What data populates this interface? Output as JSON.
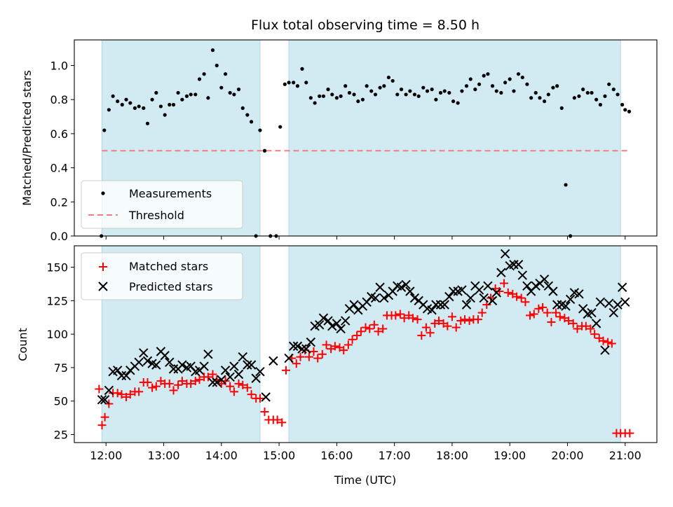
{
  "chart_data": [
    {
      "type": "scatter",
      "title": "Flux total observing time = 8.50 h",
      "xlabel": "",
      "ylabel": "Matched/Predicted stars",
      "xlim": [
        11.45,
        21.55
      ],
      "ylim": [
        0.0,
        1.15
      ],
      "yticks": [
        0.0,
        0.2,
        0.4,
        0.6,
        0.8,
        1.0
      ],
      "ytick_labels": [
        "0.0",
        "0.2",
        "0.4",
        "0.6",
        "0.8",
        "1.0"
      ],
      "shaded_ranges": [
        [
          11.93,
          14.67
        ],
        [
          15.17,
          20.92
        ]
      ],
      "shade_color": "#add8e6",
      "legend": {
        "placement": "lower-left",
        "entries": [
          "Measurements",
          "Threshold"
        ]
      },
      "series": [
        {
          "name": "Measurements",
          "marker": "dot",
          "color": "#000000",
          "x": [
            11.92,
            11.97,
            12.05,
            12.12,
            12.2,
            12.28,
            12.35,
            12.42,
            12.5,
            12.57,
            12.65,
            12.72,
            12.8,
            12.87,
            12.95,
            13.02,
            13.1,
            13.17,
            13.25,
            13.32,
            13.4,
            13.47,
            13.55,
            13.62,
            13.7,
            13.77,
            13.85,
            13.92,
            14.0,
            14.07,
            14.15,
            14.22,
            14.3,
            14.37,
            14.45,
            14.52,
            14.6,
            14.67,
            14.75,
            14.85,
            14.95,
            15.02,
            15.1,
            15.17,
            15.25,
            15.32,
            15.4,
            15.47,
            15.55,
            15.62,
            15.7,
            15.77,
            15.85,
            15.92,
            16.0,
            16.07,
            16.15,
            16.22,
            16.3,
            16.37,
            16.45,
            16.52,
            16.6,
            16.67,
            16.75,
            16.82,
            16.9,
            16.97,
            17.05,
            17.12,
            17.2,
            17.27,
            17.35,
            17.42,
            17.5,
            17.57,
            17.65,
            17.72,
            17.8,
            17.87,
            17.95,
            18.02,
            18.1,
            18.17,
            18.25,
            18.32,
            18.4,
            18.47,
            18.55,
            18.62,
            18.7,
            18.77,
            18.85,
            18.92,
            19.0,
            19.07,
            19.15,
            19.22,
            19.3,
            19.37,
            19.45,
            19.52,
            19.6,
            19.67,
            19.75,
            19.82,
            19.9,
            19.97,
            20.05,
            20.12,
            20.2,
            20.27,
            20.35,
            20.42,
            20.5,
            20.57,
            20.65,
            20.72,
            20.8,
            20.87,
            20.95,
            21.0,
            21.07
          ],
          "y": [
            0.0,
            0.62,
            0.74,
            0.82,
            0.79,
            0.77,
            0.8,
            0.78,
            0.75,
            0.76,
            0.75,
            0.66,
            0.8,
            0.84,
            0.76,
            0.71,
            0.77,
            0.77,
            0.84,
            0.8,
            0.82,
            0.83,
            0.83,
            0.92,
            0.95,
            0.81,
            1.09,
            1.0,
            0.87,
            0.95,
            0.84,
            0.83,
            0.86,
            0.75,
            0.71,
            0.67,
            0.0,
            0.62,
            0.5,
            0.0,
            0.0,
            0.64,
            0.89,
            0.9,
            0.9,
            0.88,
            0.98,
            0.9,
            0.81,
            0.78,
            0.82,
            0.82,
            0.86,
            0.83,
            0.81,
            0.82,
            0.88,
            0.84,
            0.83,
            0.79,
            0.8,
            0.88,
            0.85,
            0.83,
            0.87,
            0.88,
            0.93,
            0.91,
            0.83,
            0.86,
            0.83,
            0.85,
            0.83,
            0.82,
            0.87,
            0.85,
            0.86,
            0.8,
            0.84,
            0.85,
            0.84,
            0.79,
            0.78,
            0.85,
            0.88,
            0.92,
            0.86,
            0.89,
            0.94,
            0.95,
            0.88,
            0.85,
            0.84,
            0.9,
            0.92,
            0.85,
            0.95,
            0.93,
            0.89,
            0.81,
            0.84,
            0.81,
            0.79,
            0.83,
            0.87,
            0.88,
            0.75,
            0.3,
            0.0,
            0.81,
            0.82,
            0.86,
            0.84,
            0.84,
            0.8,
            0.77,
            0.82,
            0.89,
            0.86,
            0.83,
            0.77,
            0.74,
            0.73
          ]
        },
        {
          "name": "Threshold",
          "type": "line",
          "style": "dashed",
          "color": "#f08080",
          "x": [
            11.93,
            21.08
          ],
          "y": [
            0.5,
            0.5
          ]
        }
      ]
    },
    {
      "type": "scatter",
      "title": "",
      "xlabel": "Time (UTC)",
      "ylabel": "Count",
      "xlim": [
        11.45,
        21.55
      ],
      "ylim": [
        19,
        166
      ],
      "xticks": [
        12,
        13,
        14,
        15,
        16,
        17,
        18,
        19,
        20,
        21
      ],
      "xtick_labels": [
        "12:00",
        "13:00",
        "14:00",
        "15:00",
        "16:00",
        "17:00",
        "18:00",
        "19:00",
        "20:00",
        "21:00"
      ],
      "yticks": [
        25,
        50,
        75,
        100,
        125,
        150
      ],
      "ytick_labels": [
        "25",
        "50",
        "75",
        "100",
        "125",
        "150"
      ],
      "shaded_ranges": [
        [
          11.93,
          14.67
        ],
        [
          15.17,
          20.92
        ]
      ],
      "shade_color": "#add8e6",
      "legend": {
        "placement": "upper-left",
        "entries": [
          "Matched stars",
          "Predicted stars"
        ]
      },
      "series": [
        {
          "name": "Matched stars",
          "marker": "plus",
          "color": "#ff0000",
          "x": [
            11.88,
            11.93,
            11.98,
            12.05,
            12.12,
            12.2,
            12.27,
            12.35,
            12.42,
            12.5,
            12.57,
            12.65,
            12.72,
            12.8,
            12.87,
            12.95,
            13.02,
            13.1,
            13.17,
            13.25,
            13.32,
            13.4,
            13.47,
            13.55,
            13.62,
            13.7,
            13.77,
            13.85,
            13.92,
            14.0,
            14.07,
            14.15,
            14.22,
            14.3,
            14.37,
            14.45,
            14.52,
            14.6,
            14.67,
            14.75,
            14.82,
            14.9,
            14.97,
            15.05,
            15.12,
            15.22,
            15.3,
            15.37,
            15.45,
            15.52,
            15.6,
            15.67,
            15.75,
            15.82,
            15.9,
            15.97,
            16.05,
            16.12,
            16.2,
            16.27,
            16.35,
            16.42,
            16.5,
            16.57,
            16.65,
            16.72,
            16.8,
            16.87,
            16.95,
            17.02,
            17.1,
            17.17,
            17.25,
            17.32,
            17.4,
            17.47,
            17.55,
            17.62,
            17.7,
            17.77,
            17.85,
            17.92,
            18.0,
            18.07,
            18.15,
            18.22,
            18.3,
            18.37,
            18.45,
            18.52,
            18.6,
            18.67,
            18.75,
            18.82,
            18.9,
            18.97,
            19.05,
            19.12,
            19.2,
            19.27,
            19.35,
            19.42,
            19.5,
            19.57,
            19.65,
            19.72,
            19.8,
            19.87,
            19.95,
            20.02,
            20.1,
            20.17,
            20.25,
            20.32,
            20.4,
            20.47,
            20.55,
            20.62,
            20.7,
            20.77,
            20.85,
            20.92,
            21.0,
            21.08
          ],
          "y": [
            59,
            32,
            38,
            48,
            56,
            56,
            55,
            53,
            55,
            57,
            57,
            64,
            64,
            60,
            61,
            65,
            63,
            63,
            58,
            62,
            65,
            63,
            63,
            65,
            66,
            68,
            68,
            70,
            66,
            63,
            65,
            61,
            57,
            63,
            62,
            60,
            55,
            52,
            52,
            42,
            36,
            36,
            36,
            34,
            73,
            82,
            78,
            83,
            88,
            83,
            87,
            82,
            85,
            92,
            89,
            91,
            90,
            88,
            92,
            96,
            99,
            102,
            105,
            104,
            107,
            102,
            104,
            114,
            114,
            114,
            115,
            112,
            114,
            112,
            111,
            99,
            105,
            101,
            108,
            110,
            108,
            106,
            113,
            105,
            110,
            111,
            110,
            111,
            111,
            116,
            122,
            127,
            134,
            132,
            138,
            131,
            130,
            128,
            127,
            124,
            114,
            115,
            119,
            120,
            116,
            109,
            116,
            113,
            112,
            110,
            108,
            104,
            106,
            106,
            104,
            100,
            97,
            95,
            94,
            93,
            26,
            26,
            26,
            26
          ]
        },
        {
          "name": "Predicted stars",
          "marker": "x",
          "color": "#000000",
          "x": [
            11.93,
            11.98,
            12.05,
            12.12,
            12.2,
            12.27,
            12.35,
            12.42,
            12.5,
            12.57,
            12.65,
            12.72,
            12.8,
            12.87,
            12.95,
            13.02,
            13.1,
            13.17,
            13.25,
            13.32,
            13.4,
            13.47,
            13.55,
            13.62,
            13.7,
            13.77,
            13.85,
            13.92,
            14.0,
            14.07,
            14.15,
            14.22,
            14.3,
            14.37,
            14.45,
            14.52,
            14.6,
            14.67,
            14.77,
            14.9,
            15.17,
            15.25,
            15.32,
            15.4,
            15.47,
            15.55,
            15.62,
            15.7,
            15.77,
            15.85,
            15.92,
            16.0,
            16.07,
            16.15,
            16.22,
            16.3,
            16.37,
            16.45,
            16.52,
            16.6,
            16.67,
            16.75,
            16.82,
            16.9,
            16.97,
            17.05,
            17.12,
            17.2,
            17.27,
            17.35,
            17.42,
            17.5,
            17.57,
            17.65,
            17.72,
            17.8,
            17.87,
            17.95,
            18.02,
            18.1,
            18.17,
            18.25,
            18.32,
            18.4,
            18.47,
            18.55,
            18.62,
            18.7,
            18.77,
            18.85,
            18.92,
            19.0,
            19.07,
            19.15,
            19.22,
            19.3,
            19.37,
            19.45,
            19.52,
            19.6,
            19.67,
            19.75,
            19.82,
            19.9,
            19.97,
            20.05,
            20.12,
            20.2,
            20.27,
            20.35,
            20.42,
            20.5,
            20.57,
            20.65,
            20.72,
            20.8,
            20.87,
            20.95,
            21.0
          ],
          "y": [
            51,
            51,
            58,
            72,
            73,
            69,
            69,
            73,
            76,
            79,
            86,
            80,
            78,
            77,
            87,
            84,
            79,
            74,
            74,
            77,
            75,
            76,
            72,
            73,
            76,
            85,
            64,
            64,
            66,
            73,
            68,
            76,
            70,
            83,
            77,
            77,
            67,
            72,
            53,
            80,
            82,
            91,
            91,
            89,
            89,
            94,
            106,
            107,
            112,
            110,
            106,
            108,
            104,
            110,
            119,
            122,
            118,
            121,
            124,
            128,
            127,
            135,
            127,
            129,
            132,
            136,
            135,
            137,
            132,
            127,
            125,
            122,
            119,
            118,
            122,
            122,
            122,
            128,
            132,
            132,
            133,
            122,
            127,
            136,
            133,
            127,
            136,
            125,
            131,
            146,
            160,
            151,
            152,
            152,
            144,
            136,
            132,
            136,
            138,
            141,
            136,
            132,
            122,
            122,
            121,
            126,
            131,
            130,
            119,
            115,
            116,
            108,
            124,
            88,
            123,
            116,
            122,
            135,
            124
          ]
        }
      ]
    }
  ]
}
